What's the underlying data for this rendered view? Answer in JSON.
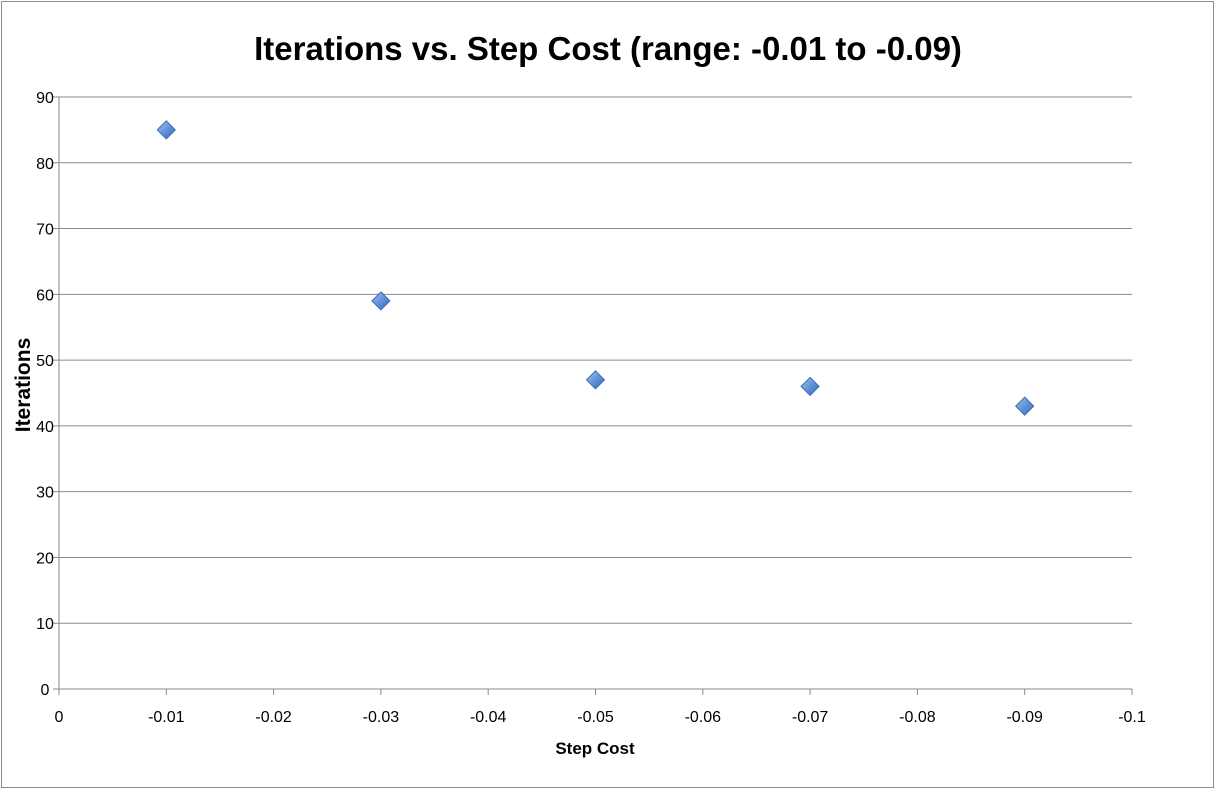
{
  "chart_data": {
    "type": "scatter",
    "title": "Iterations vs. Step Cost (range: -0.01 to -0.09)",
    "xlabel": "Step Cost",
    "ylabel": "Iterations",
    "xlim": [
      0,
      -0.1
    ],
    "ylim": [
      0,
      90
    ],
    "x_ticks": [
      "0",
      "-0.01",
      "-0.02",
      "-0.03",
      "-0.04",
      "-0.05",
      "-0.06",
      "-0.07",
      "-0.08",
      "-0.09",
      "-0.1"
    ],
    "x_tick_values": [
      0,
      -0.01,
      -0.02,
      -0.03,
      -0.04,
      -0.05,
      -0.06,
      -0.07,
      -0.08,
      -0.09,
      -0.1
    ],
    "y_ticks": [
      "0",
      "10",
      "20",
      "30",
      "40",
      "50",
      "60",
      "70",
      "80",
      "90"
    ],
    "y_tick_values": [
      0,
      10,
      20,
      30,
      40,
      50,
      60,
      70,
      80,
      90
    ],
    "grid": "horizontal",
    "legend": "none",
    "marker": "diamond",
    "marker_color": "#4f81bd",
    "points": [
      {
        "x": -0.01,
        "y": 85
      },
      {
        "x": -0.03,
        "y": 59
      },
      {
        "x": -0.05,
        "y": 47
      },
      {
        "x": -0.07,
        "y": 46
      },
      {
        "x": -0.09,
        "y": 43
      }
    ]
  }
}
